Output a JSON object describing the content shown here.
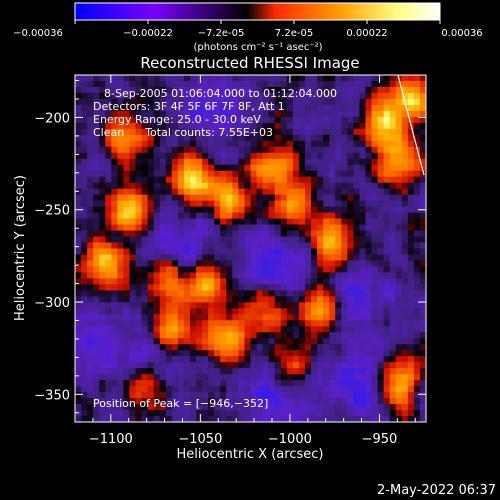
{
  "chart_data": {
    "type": "heatmap",
    "title": "Reconstructed RHESSI Image",
    "xlabel": "Heliocentric X (arcsec)",
    "ylabel": "Heliocentric Y (arcsec)",
    "xlim": [
      -1120,
      -924
    ],
    "ylim": [
      -365,
      -177
    ],
    "xticks": [
      -1100,
      -1050,
      -1000,
      -950
    ],
    "yticks": [
      -200,
      -250,
      -300,
      -350
    ],
    "xtick_labels": [
      "−1100",
      "−1050",
      "−1000",
      "−950"
    ],
    "ytick_labels": [
      "−200",
      "−250",
      "−300",
      "−350"
    ],
    "info_lines": [
      "8-Sep-2005 01:06:04.000 to 01:12:04.000",
      "Detectors: 3F 4F 5F 6F 7F 8F, Att 1",
      "Energy Range: 25.0 - 30.0 keV",
      "Clean      Total counts: 7.55E+03"
    ],
    "peak_label": "Position of Peak = [−946,−352]",
    "peak_position": [
      -946,
      -352
    ],
    "colorbar": {
      "range": [
        -0.00036,
        0.00036
      ],
      "tick_labels": [
        "−0.00036",
        "−0.00022",
        "−7.2e-05",
        "7.2e-05",
        "0.00022",
        "0.00036"
      ],
      "unit_label": "(photons cm⁻² s⁻¹ asec⁻²)",
      "colors": [
        "#0000ff",
        "#7a00ff",
        "#000000",
        "#ff2a00",
        "#ff9900",
        "#ffff80",
        "#ffffff"
      ]
    },
    "hotspots": [
      {
        "x": -1055,
        "y": -233,
        "v": 1.0
      },
      {
        "x": -1090,
        "y": -250,
        "v": 0.9
      },
      {
        "x": -1035,
        "y": -244,
        "v": 0.85
      },
      {
        "x": -1010,
        "y": -226,
        "v": 0.75
      },
      {
        "x": -998,
        "y": -248,
        "v": 0.75
      },
      {
        "x": -976,
        "y": -268,
        "v": 0.9
      },
      {
        "x": -982,
        "y": -303,
        "v": 0.85
      },
      {
        "x": -1046,
        "y": -290,
        "v": 0.8
      },
      {
        "x": -1066,
        "y": -316,
        "v": 0.85
      },
      {
        "x": -1068,
        "y": -288,
        "v": 0.7
      },
      {
        "x": -1102,
        "y": -280,
        "v": 0.85
      },
      {
        "x": -1036,
        "y": -320,
        "v": 0.8
      },
      {
        "x": -1013,
        "y": -306,
        "v": 0.6
      },
      {
        "x": -948,
        "y": -203,
        "v": 0.9
      },
      {
        "x": -940,
        "y": -224,
        "v": 0.8
      },
      {
        "x": -932,
        "y": -189,
        "v": 0.85
      },
      {
        "x": -940,
        "y": -345,
        "v": 1.0
      },
      {
        "x": -1092,
        "y": -212,
        "v": 0.7
      },
      {
        "x": -1080,
        "y": -345,
        "v": 0.6
      },
      {
        "x": -1000,
        "y": -338,
        "v": 0.55
      }
    ],
    "coldspots": [
      {
        "x": -1060,
        "y": -270,
        "v": 0.8
      },
      {
        "x": -1075,
        "y": -330,
        "v": 0.8
      },
      {
        "x": -960,
        "y": -345,
        "v": 0.9
      },
      {
        "x": -1040,
        "y": -195,
        "v": 0.7
      },
      {
        "x": -1010,
        "y": -350,
        "v": 0.8
      },
      {
        "x": -1010,
        "y": -280,
        "v": 0.7
      },
      {
        "x": -965,
        "y": -300,
        "v": 0.8
      },
      {
        "x": -1110,
        "y": -320,
        "v": 0.6
      }
    ]
  },
  "footer": {
    "timestamp": "2-May-2022 06:37"
  }
}
